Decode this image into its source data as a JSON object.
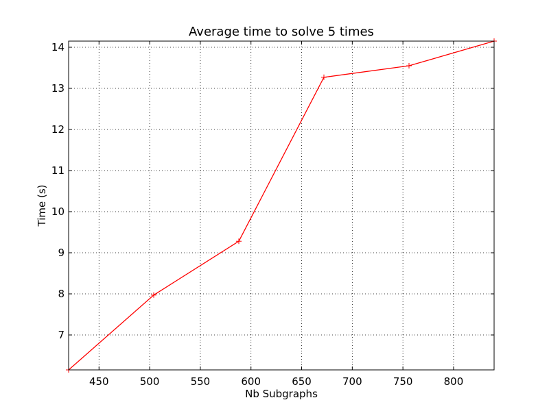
{
  "chart_data": {
    "type": "line",
    "title": "Average time to solve 5 times",
    "xlabel": "Nb Subgraphs",
    "ylabel": "Time (s)",
    "xlim": [
      420,
      840
    ],
    "ylim": [
      6.15,
      14.15
    ],
    "xticks": [
      450,
      500,
      550,
      600,
      650,
      700,
      750,
      800
    ],
    "yticks": [
      7,
      8,
      9,
      10,
      11,
      12,
      13,
      14
    ],
    "grid": true,
    "series": [
      {
        "name": "Average time",
        "color": "#ff0000",
        "marker": "plus",
        "x": [
          420,
          504,
          588,
          672,
          756,
          840
        ],
        "y": [
          6.15,
          7.97,
          9.28,
          13.27,
          13.55,
          14.15
        ]
      }
    ]
  }
}
